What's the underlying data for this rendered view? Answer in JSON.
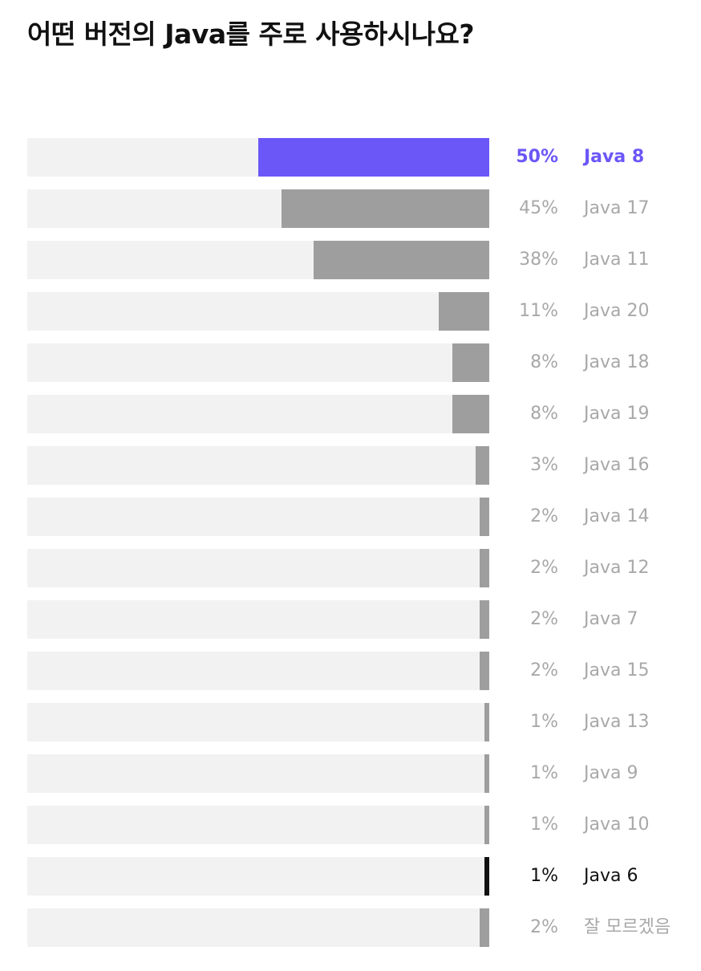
{
  "page_title": "어떤 버전의 Java를 주로 사용하시나요?",
  "colors": {
    "highlight": "#6b57f7",
    "bar_default": "#9e9e9e",
    "bar_dark": "#111111",
    "track": "#f2f2f2",
    "text_muted": "#a8a8a8",
    "text_dark": "#111111"
  },
  "chart_data": {
    "type": "bar",
    "orientation": "horizontal",
    "title": "어떤 버전의 Java를 주로 사용하시나요?",
    "xlim": [
      0,
      100
    ],
    "grid": false,
    "items": [
      {
        "category": "Java 8",
        "value": 50,
        "value_label": "50%",
        "style": "highlight"
      },
      {
        "category": "Java 17",
        "value": 45,
        "value_label": "45%",
        "style": "default"
      },
      {
        "category": "Java 11",
        "value": 38,
        "value_label": "38%",
        "style": "default"
      },
      {
        "category": "Java 20",
        "value": 11,
        "value_label": "11%",
        "style": "default"
      },
      {
        "category": "Java 18",
        "value": 8,
        "value_label": "8%",
        "style": "default"
      },
      {
        "category": "Java 19",
        "value": 8,
        "value_label": "8%",
        "style": "default"
      },
      {
        "category": "Java 16",
        "value": 3,
        "value_label": "3%",
        "style": "default"
      },
      {
        "category": "Java 14",
        "value": 2,
        "value_label": "2%",
        "style": "default"
      },
      {
        "category": "Java 12",
        "value": 2,
        "value_label": "2%",
        "style": "default"
      },
      {
        "category": "Java 7",
        "value": 2,
        "value_label": "2%",
        "style": "default"
      },
      {
        "category": "Java 15",
        "value": 2,
        "value_label": "2%",
        "style": "default"
      },
      {
        "category": "Java 13",
        "value": 1,
        "value_label": "1%",
        "style": "default"
      },
      {
        "category": "Java 9",
        "value": 1,
        "value_label": "1%",
        "style": "default"
      },
      {
        "category": "Java 10",
        "value": 1,
        "value_label": "1%",
        "style": "default"
      },
      {
        "category": "Java 6",
        "value": 1,
        "value_label": "1%",
        "style": "dark"
      },
      {
        "category": "잘 모르겠음",
        "value": 2,
        "value_label": "2%",
        "style": "default"
      }
    ]
  }
}
